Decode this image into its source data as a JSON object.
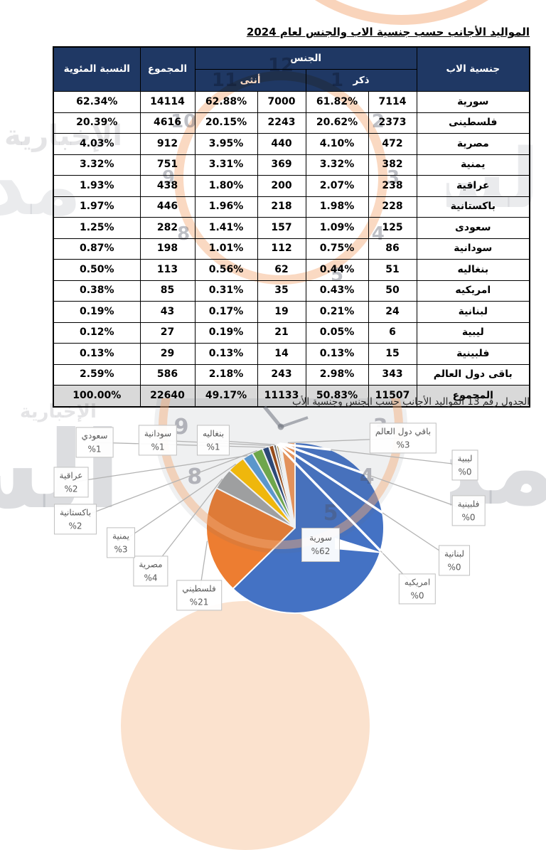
{
  "page": {
    "title": "المواليد الأجانب حسب جنسية الاب والجنس لعام 2024",
    "caption": "الجدول رقم  13 المواليد الأجانب حسب الجنس وجنسية الأب"
  },
  "table": {
    "headers": {
      "nationality": "جنسية الاب",
      "gender": "الجنس",
      "male": "ذكر",
      "female": "أنثى",
      "total": "المجموع",
      "percentage": "النسبة المئوية"
    },
    "rows": [
      {
        "nationality": "سورية",
        "male": "7114",
        "male_pct": "61.82%",
        "female": "7000",
        "female_pct": "62.88%",
        "total": "14114",
        "pct": "62.34%",
        "is_total": false
      },
      {
        "nationality": "فلسطينى",
        "male": "2373",
        "male_pct": "20.62%",
        "female": "2243",
        "female_pct": "20.15%",
        "total": "4616",
        "pct": "20.39%",
        "is_total": false
      },
      {
        "nationality": "مصرية",
        "male": "472",
        "male_pct": "4.10%",
        "female": "440",
        "female_pct": "3.95%",
        "total": "912",
        "pct": "4.03%",
        "is_total": false
      },
      {
        "nationality": "يمنية",
        "male": "382",
        "male_pct": "3.32%",
        "female": "369",
        "female_pct": "3.31%",
        "total": "751",
        "pct": "3.32%",
        "is_total": false
      },
      {
        "nationality": "عراقية",
        "male": "238",
        "male_pct": "2.07%",
        "female": "200",
        "female_pct": "1.80%",
        "total": "438",
        "pct": "1.93%",
        "is_total": false
      },
      {
        "nationality": "باكستانية",
        "male": "228",
        "male_pct": "1.98%",
        "female": "218",
        "female_pct": "1.96%",
        "total": "446",
        "pct": "1.97%",
        "is_total": false
      },
      {
        "nationality": "سعودى",
        "male": "125",
        "male_pct": "1.09%",
        "female": "157",
        "female_pct": "1.41%",
        "total": "282",
        "pct": "1.25%",
        "is_total": false
      },
      {
        "nationality": "سودانية",
        "male": "86",
        "male_pct": "0.75%",
        "female": "112",
        "female_pct": "1.01%",
        "total": "198",
        "pct": "0.87%",
        "is_total": false
      },
      {
        "nationality": "بنغاليه",
        "male": "51",
        "male_pct": "0.44%",
        "female": "62",
        "female_pct": "0.56%",
        "total": "113",
        "pct": "0.50%",
        "is_total": false
      },
      {
        "nationality": "امريكيه",
        "male": "50",
        "male_pct": "0.43%",
        "female": "35",
        "female_pct": "0.31%",
        "total": "85",
        "pct": "0.38%",
        "is_total": false
      },
      {
        "nationality": "لبنانية",
        "male": "24",
        "male_pct": "0.21%",
        "female": "19",
        "female_pct": "0.17%",
        "total": "43",
        "pct": "0.19%",
        "is_total": false
      },
      {
        "nationality": "ليبية",
        "male": "6",
        "male_pct": "0.05%",
        "female": "21",
        "female_pct": "0.19%",
        "total": "27",
        "pct": "0.12%",
        "is_total": false
      },
      {
        "nationality": "فلبينية",
        "male": "15",
        "male_pct": "0.13%",
        "female": "14",
        "female_pct": "0.13%",
        "total": "29",
        "pct": "0.13%",
        "is_total": false
      },
      {
        "nationality": "باقى دول العالم",
        "male": "343",
        "male_pct": "2.98%",
        "female": "243",
        "female_pct": "2.18%",
        "total": "586",
        "pct": "2.59%",
        "is_total": false
      },
      {
        "nationality": "المجموع",
        "male": "11507",
        "male_pct": "50.83%",
        "female": "11133",
        "female_pct": "49.17%",
        "total": "22640",
        "pct": "100.00%",
        "is_total": true
      }
    ]
  },
  "chart_data": {
    "type": "pie",
    "title": "",
    "legend_position": "callout-labels",
    "start_angle_deg": 0,
    "direction": "clockwise",
    "series": [
      {
        "name": "سورية",
        "value": 62.34,
        "label_pct": "%62",
        "color": "#4472C4"
      },
      {
        "name": "فلسطيني",
        "value": 20.39,
        "label_pct": "%21",
        "color": "#ED7D31"
      },
      {
        "name": "مصرية",
        "value": 4.03,
        "label_pct": "%4",
        "color": "#A5A5A5"
      },
      {
        "name": "يمنية",
        "value": 3.32,
        "label_pct": "%3",
        "color": "#FFC000"
      },
      {
        "name": "عراقية",
        "value": 1.93,
        "label_pct": "%2",
        "color": "#5B9BD5"
      },
      {
        "name": "باكستانية",
        "value": 1.97,
        "label_pct": "%2",
        "color": "#70AD47"
      },
      {
        "name": "سعودي",
        "value": 1.25,
        "label_pct": "%1",
        "color": "#264478"
      },
      {
        "name": "سودانية",
        "value": 0.87,
        "label_pct": "%1",
        "color": "#9E480E"
      },
      {
        "name": "بنغاليه",
        "value": 0.5,
        "label_pct": "%1",
        "color": "#636363"
      },
      {
        "name": "امريكيه",
        "value": 0.38,
        "label_pct": "%0",
        "color": "#997300"
      },
      {
        "name": "لبنانية",
        "value": 0.19,
        "label_pct": "%0",
        "color": "#255E91"
      },
      {
        "name": "ليبية",
        "value": 0.12,
        "label_pct": "%0",
        "color": "#43682B"
      },
      {
        "name": "فلبينية",
        "value": 0.13,
        "label_pct": "%0",
        "color": "#698ED0"
      },
      {
        "name": "باقي دول العالم",
        "value": 2.59,
        "label_pct": "%3",
        "color": "#F1975A"
      }
    ]
  },
  "watermark": {
    "brand": "مدار الساعة",
    "brand_partial_right": "مد",
    "brand_partial_left": "الس",
    "brand_partial_table_left": "مدار",
    "brand_partial_table_right": "الساعة",
    "secondary": "الإخبارية",
    "clock_numbers": [
      "12",
      "1",
      "2",
      "3",
      "4",
      "5",
      "8",
      "9",
      "10",
      "11"
    ]
  }
}
